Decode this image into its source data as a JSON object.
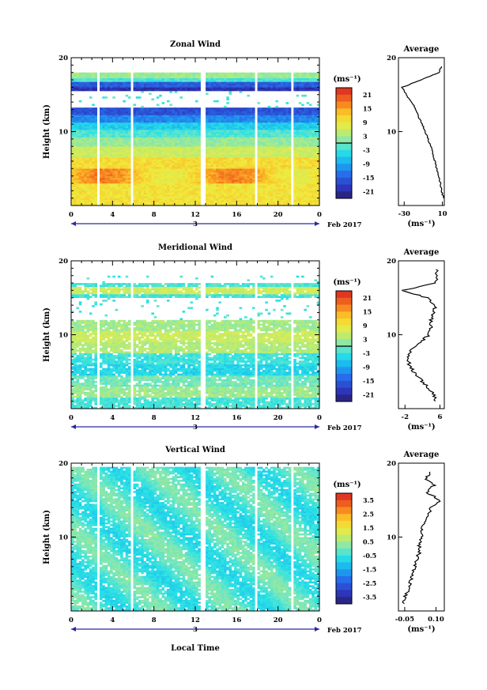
{
  "common": {
    "x_ticks": [
      "0",
      "4",
      "8",
      "12",
      "16",
      "20",
      "0"
    ],
    "day_label": "3",
    "date_label": "Feb 2017",
    "y_ticks": [
      "20",
      "10"
    ],
    "ylabel": "Height (km)",
    "xlabel": "Local Time",
    "units_label": "(ms⁻¹)"
  },
  "chart_data": [
    {
      "type": "heatmap",
      "title": "Zonal Wind",
      "ylabel": "Height (km)",
      "xlim": [
        0,
        24
      ],
      "ylim": [
        0,
        20
      ],
      "colorbar": {
        "units": "(ms⁻¹)",
        "ticks": [
          "21",
          "15",
          "9",
          "3",
          "-3",
          "-9",
          "-15",
          "-21"
        ],
        "range": [
          -24,
          24
        ],
        "zero_line": true
      },
      "profile": {
        "title": "Average",
        "xticks": [
          "-30",
          "10"
        ],
        "xlim": [
          -36,
          12
        ],
        "xlabel": "(ms⁻¹)",
        "yticks": [
          "20",
          "10"
        ],
        "heights": [
          1,
          2,
          3,
          4,
          5,
          6,
          7,
          8,
          9,
          10,
          11,
          12,
          13,
          14,
          15,
          16,
          17,
          18,
          19
        ],
        "values": [
          11,
          9,
          8,
          6,
          4,
          2,
          0,
          -2,
          -5,
          -8,
          -11,
          -15,
          -18,
          -22,
          -28,
          -32,
          -12,
          6,
          10
        ]
      }
    },
    {
      "type": "heatmap",
      "title": "Meridional Wind",
      "ylabel": "Height (km)",
      "xlim": [
        0,
        24
      ],
      "ylim": [
        0,
        20
      ],
      "colorbar": {
        "units": "(ms⁻¹)",
        "ticks": [
          "21",
          "15",
          "9",
          "3",
          "-3",
          "-9",
          "-15",
          "-21"
        ],
        "range": [
          -24,
          24
        ],
        "zero_line": true
      },
      "profile": {
        "title": "Average",
        "xticks": [
          "-2",
          "6"
        ],
        "xlim": [
          -3.5,
          7
        ],
        "xlabel": "(ms⁻¹)",
        "yticks": [
          "20",
          "10"
        ],
        "heights": [
          1,
          2,
          3,
          4,
          5,
          6,
          7,
          8,
          9,
          10,
          11,
          12,
          13,
          14,
          15,
          16,
          17,
          18,
          19
        ],
        "values": [
          5,
          4.5,
          3,
          1.5,
          0,
          -1,
          -1.5,
          -0.5,
          1.5,
          3.5,
          4,
          4,
          4.5,
          5,
          3,
          -2.5,
          5,
          5.5,
          5
        ]
      }
    },
    {
      "type": "heatmap",
      "title": "Vertical Wind",
      "ylabel": "Height (km)",
      "xlabel": "Local Time",
      "xlim": [
        0,
        24
      ],
      "ylim": [
        0,
        20
      ],
      "colorbar": {
        "units": "(ms⁻¹)",
        "ticks": [
          "3.5",
          "2.5",
          "1.5",
          "0.5",
          "-0.5",
          "-1.5",
          "-2.5",
          "-3.5"
        ],
        "range": [
          -4,
          4
        ],
        "zero_line": false
      },
      "profile": {
        "title": "Average",
        "xticks": [
          "-0.05",
          "0.10"
        ],
        "xlim": [
          -0.08,
          0.14
        ],
        "xlabel": "(ms⁻¹)",
        "yticks": [
          "20",
          "10"
        ],
        "heights": [
          1,
          2,
          3,
          4,
          5,
          6,
          7,
          8,
          9,
          10,
          11,
          12,
          13,
          14,
          15,
          16,
          17,
          18,
          19
        ],
        "values": [
          -0.06,
          -0.05,
          -0.03,
          -0.02,
          -0.01,
          0.0,
          0.01,
          0.02,
          0.02,
          0.03,
          0.03,
          0.04,
          0.06,
          0.08,
          0.12,
          0.06,
          0.09,
          0.05,
          0.08
        ]
      }
    }
  ]
}
